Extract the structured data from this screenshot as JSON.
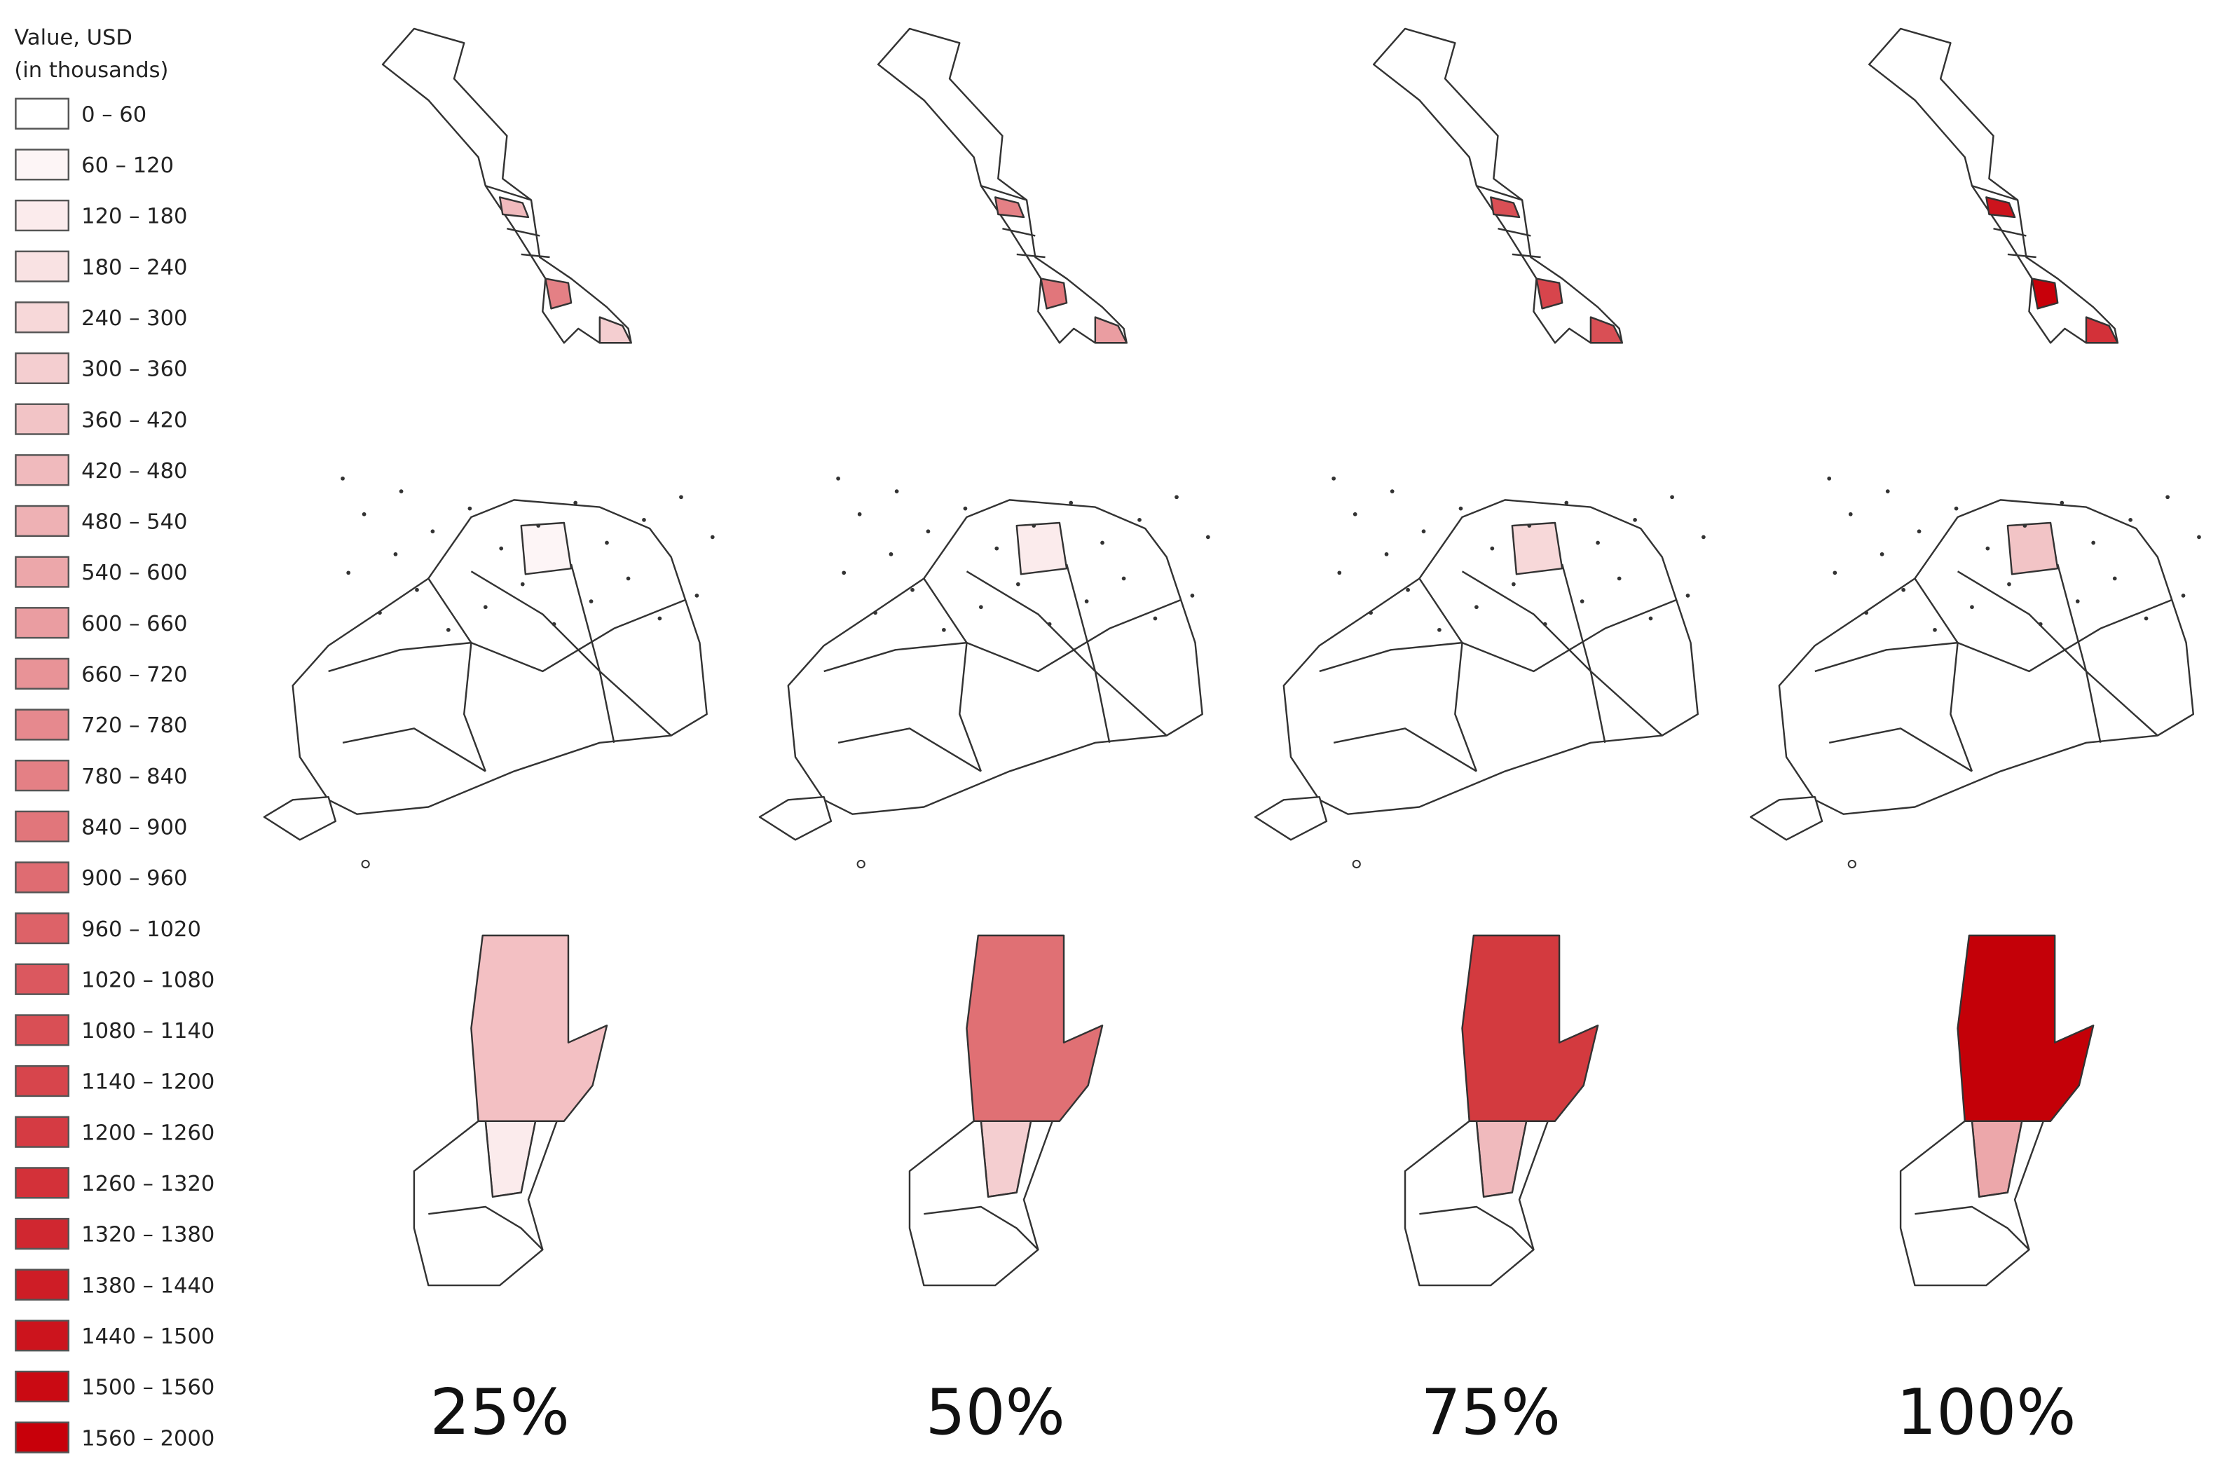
{
  "legend": {
    "title": [
      "Value, USD",
      "(in thousands)"
    ],
    "items": [
      {
        "label": "0 – 60",
        "color": "#ffffff"
      },
      {
        "label": "60 – 120",
        "color": "#fdf5f6"
      },
      {
        "label": "120 – 180",
        "color": "#fbebec"
      },
      {
        "label": "180 – 240",
        "color": "#f9e2e3"
      },
      {
        "label": "240 – 300",
        "color": "#f7d8d9"
      },
      {
        "label": "300 – 360",
        "color": "#f4ced0"
      },
      {
        "label": "360 – 420",
        "color": "#f2c4c6"
      },
      {
        "label": "420 – 480",
        "color": "#f0babd"
      },
      {
        "label": "480 – 540",
        "color": "#eeb1b4"
      },
      {
        "label": "540 – 600",
        "color": "#eca7aa"
      },
      {
        "label": "600 – 660",
        "color": "#ea9da1"
      },
      {
        "label": "660 – 720",
        "color": "#e89397"
      },
      {
        "label": "720 – 780",
        "color": "#e6898e"
      },
      {
        "label": "780 – 840",
        "color": "#e48085"
      },
      {
        "label": "840 – 900",
        "color": "#e1767b"
      },
      {
        "label": "900 – 960",
        "color": "#df6c72"
      },
      {
        "label": "960 – 1020",
        "color": "#dd6268"
      },
      {
        "label": "1020 – 1080",
        "color": "#db585f"
      },
      {
        "label": "1080 – 1140",
        "color": "#d94f55"
      },
      {
        "label": "1140 – 1200",
        "color": "#d7454c"
      },
      {
        "label": "1200 – 1260",
        "color": "#d53b43"
      },
      {
        "label": "1260 – 1320",
        "color": "#d33139"
      },
      {
        "label": "1320 – 1380",
        "color": "#d02730"
      },
      {
        "label": "1380 – 1440",
        "color": "#ce1d26"
      },
      {
        "label": "1440 – 1500",
        "color": "#cc141d"
      },
      {
        "label": "1500 – 1560",
        "color": "#ca0a13"
      },
      {
        "label": "1560 – 2000",
        "color": "#c8000a"
      }
    ]
  },
  "columns": [
    "25%",
    "50%",
    "75%",
    "100%"
  ]
}
